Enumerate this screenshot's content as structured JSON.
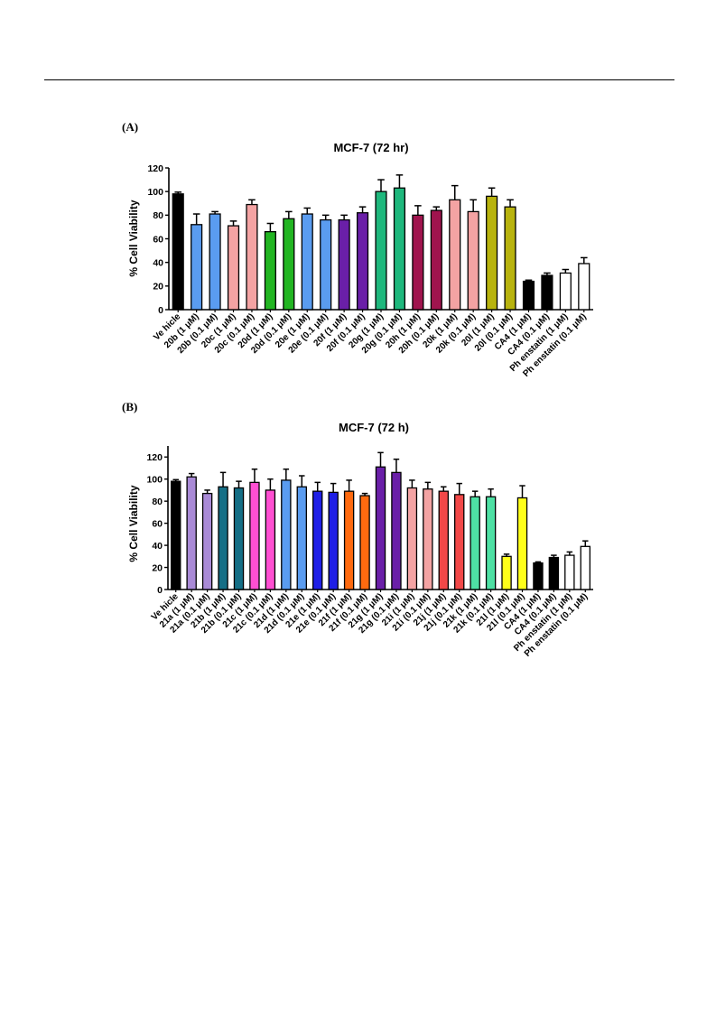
{
  "panels": {
    "a": "(A)",
    "b": "(B)"
  },
  "chart_data": [
    {
      "type": "bar",
      "title": "MCF-7 (72 hr)",
      "xlabel": "",
      "ylabel": "% Cell Viability",
      "ylim": [
        0,
        120
      ],
      "yticks": [
        0,
        20,
        40,
        60,
        80,
        100,
        120
      ],
      "grid": false,
      "categories": [
        "Ve hicle",
        "20b (1 μM)",
        "20b (0.1 μM)",
        "20c (1 μM)",
        "20c (0.1 μM)",
        "20d (1 μM)",
        "20d (0.1 μM)",
        "20e (1 μM)",
        "20e (0.1 μM)",
        "20f (1 μM)",
        "20f (0.1 μM)",
        "20g (1 μM)",
        "20g (0.1 μM)",
        "20h (1 μM)",
        "20h (0.1 μM)",
        "20k (1 μM)",
        "20k (0.1 μM)",
        "20l (1 μM)",
        "20l (0.1 μM)",
        "CA4 (1 μM)",
        "CA4 (0.1 μM)",
        "Ph enstatin (1 μM)",
        "Ph enstatin (0.1 μM)"
      ],
      "values": [
        98,
        72,
        81,
        71,
        89,
        66,
        77,
        81,
        76,
        76,
        82,
        100,
        103,
        80,
        84,
        93,
        83,
        96,
        87,
        24,
        29,
        31,
        39
      ],
      "errors": [
        1.5,
        9,
        2,
        4,
        4,
        7,
        6,
        5,
        4,
        4,
        5,
        10,
        11,
        8,
        3,
        12,
        10,
        7,
        6,
        1,
        2,
        3,
        5
      ],
      "colors": [
        "#000000",
        "#5a9cf0",
        "#5a9cf0",
        "#f4a3a3",
        "#f4a3a3",
        "#22b522",
        "#22b522",
        "#5a9cf0",
        "#5a9cf0",
        "#6a1fa8",
        "#6a1fa8",
        "#1fb87d",
        "#1fb87d",
        "#a0144e",
        "#a0144e",
        "#f4a3a3",
        "#f4a3a3",
        "#b8b30e",
        "#b8b30e",
        "#000000",
        "#000000",
        "#ffffff",
        "#ffffff"
      ]
    },
    {
      "type": "bar",
      "title": "MCF-7 (72 h)",
      "xlabel": "",
      "ylabel": "% Cell Viability",
      "ylim": [
        0,
        130
      ],
      "yticks": [
        0,
        20,
        40,
        60,
        80,
        100,
        120
      ],
      "grid": false,
      "categories": [
        "Ve hicle",
        "21a (1 μM)",
        "21a (0.1 μM)",
        "21b (1 μM)",
        "21b (0.1 μM)",
        "21c (1 μM)",
        "21c (0.1 μM)",
        "21d (1 μM)",
        "21d (0.1 μM)",
        "21e (1 μM)",
        "21e (0.1 μM)",
        "21f (1 μM)",
        "21f (0.1 μM)",
        "21g (1 μM)",
        "21g (0.1 μM)",
        "21i (1 μM)",
        "21i (0.1 μM)",
        "21j (1 μM)",
        "21j (0.1 μM)",
        "21k (1 μM)",
        "21k (0.1 μM)",
        "21l (1 μM)",
        "21l (0.1 μM)",
        "CA4 (1 μM)",
        "CA4 (0.1 μM)",
        "Ph enstatin (1 μM)",
        "Ph enstatin (0.1 μM)"
      ],
      "values": [
        98,
        102,
        87,
        93,
        92,
        97,
        90,
        99,
        93,
        89,
        88,
        89,
        85,
        111,
        106,
        92,
        91,
        89,
        86,
        84,
        84,
        30,
        83,
        24,
        29,
        31,
        39
      ],
      "errors": [
        1.5,
        3,
        3,
        13,
        6,
        12,
        10,
        10,
        10,
        8,
        8,
        10,
        2,
        13,
        12,
        7,
        6,
        4,
        10,
        5,
        7,
        2,
        11,
        1,
        2,
        3,
        5
      ],
      "colors": [
        "#000000",
        "#a98ad6",
        "#a98ad6",
        "#156f86",
        "#156f86",
        "#ff4fd2",
        "#ff4fd2",
        "#5a9cf0",
        "#5a9cf0",
        "#1f1fe6",
        "#1f1fe6",
        "#ff6a0f",
        "#ff6a0f",
        "#6a1fa8",
        "#6a1fa8",
        "#f4a3a3",
        "#f4a3a3",
        "#f24848",
        "#f24848",
        "#4ee0a4",
        "#4ee0a4",
        "#ffff1a",
        "#ffff1a",
        "#000000",
        "#000000",
        "#ffffff",
        "#ffffff"
      ]
    }
  ]
}
